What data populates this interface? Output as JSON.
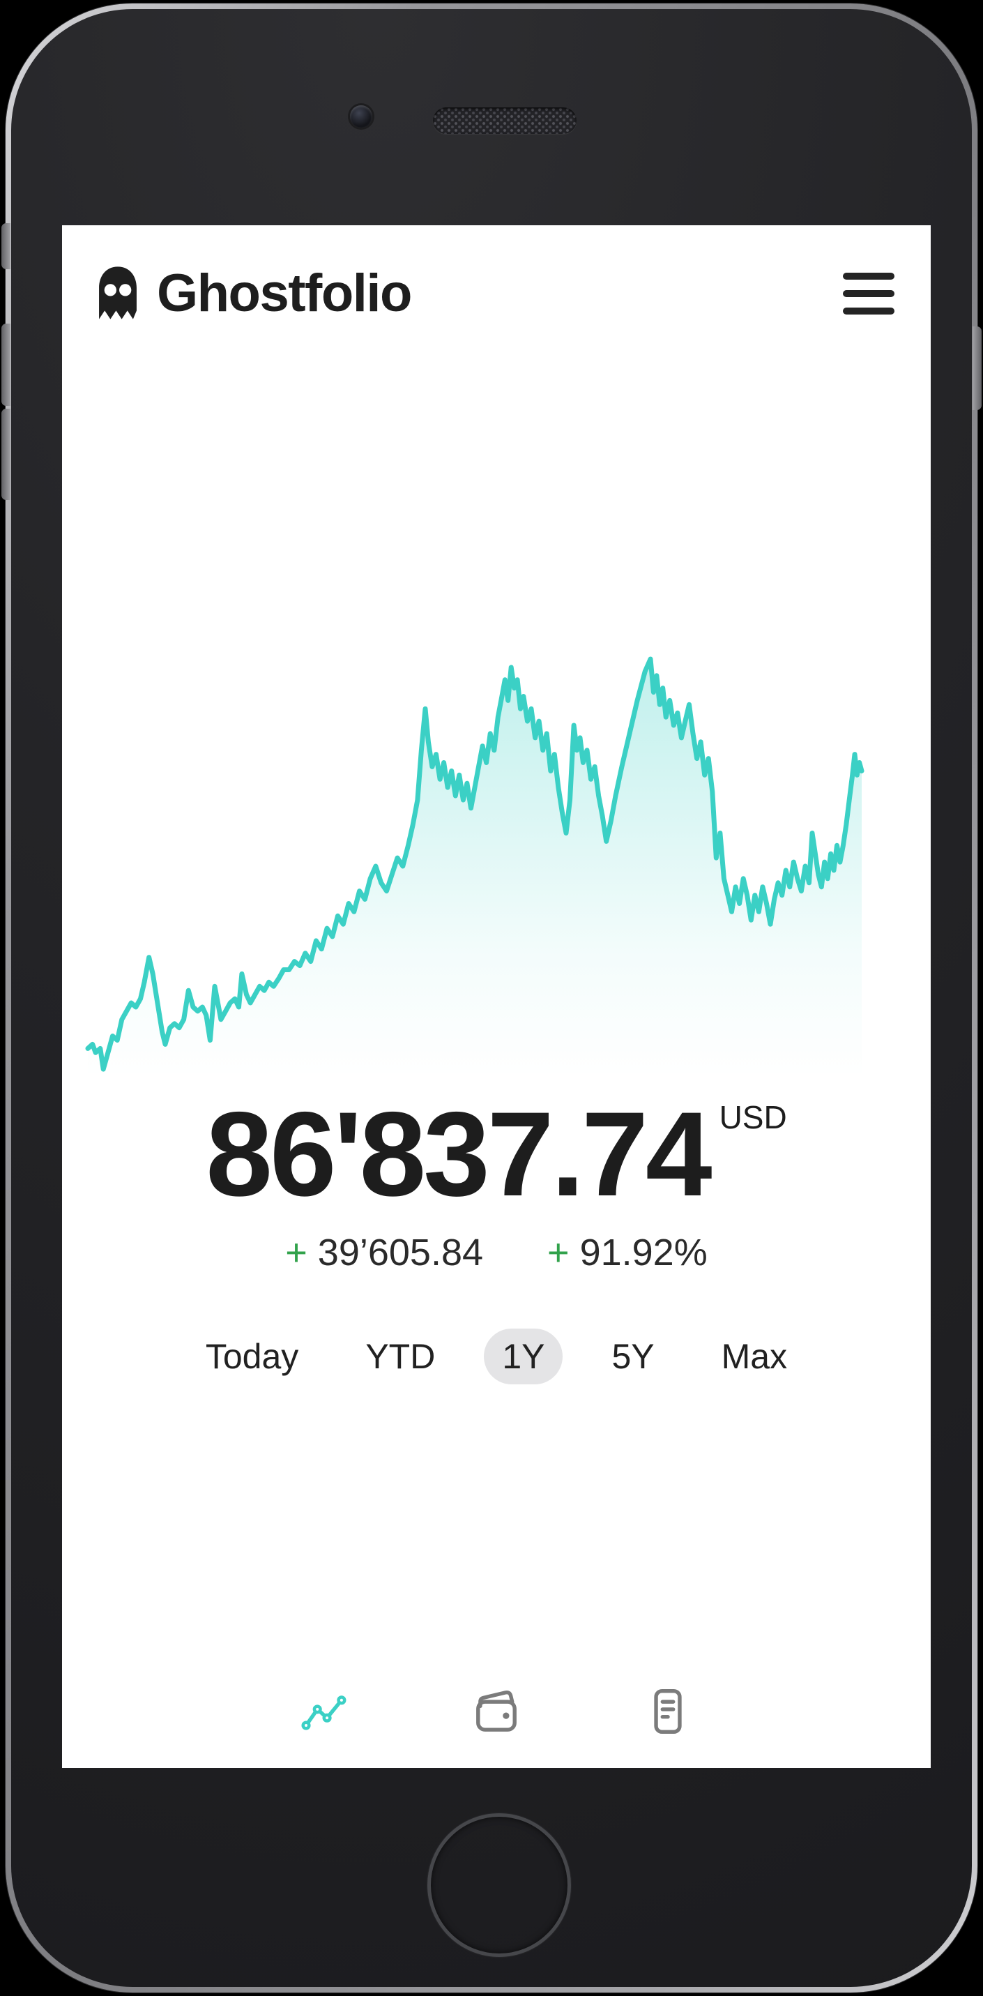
{
  "header": {
    "brand": "Ghostfolio"
  },
  "summary": {
    "value": "86'837.74",
    "currency": "USD",
    "sign": "+",
    "change_amount": "39’605.84",
    "change_percent": "91.92%"
  },
  "ranges": {
    "items": [
      {
        "label": "Today",
        "active": false
      },
      {
        "label": "YTD",
        "active": false
      },
      {
        "label": "1Y",
        "active": true
      },
      {
        "label": "5Y",
        "active": false
      },
      {
        "label": "Max",
        "active": false
      }
    ]
  },
  "nav": {
    "items": [
      {
        "icon": "performance-chart-icon",
        "active": true
      },
      {
        "icon": "wallet-icon",
        "active": false
      },
      {
        "icon": "reports-icon",
        "active": false
      }
    ]
  },
  "colors": {
    "accent": "#3bd0c5",
    "positive": "#31a24b",
    "pill": "#e4e4e6",
    "text": "#1e1e1e"
  },
  "chart_data": {
    "type": "area",
    "xlim": [
      0,
      1
    ],
    "ylim": [
      0,
      100
    ],
    "grid": false,
    "legend": false,
    "axes_visible": false,
    "line_color": "#3bd0c5",
    "fill": "vertical gradient of line color fading to transparent",
    "points": [
      [
        0,
        6
      ],
      [
        0.006,
        7
      ],
      [
        0.01,
        5
      ],
      [
        0.016,
        6
      ],
      [
        0.02,
        1
      ],
      [
        0.026,
        5
      ],
      [
        0.032,
        9
      ],
      [
        0.038,
        8
      ],
      [
        0.044,
        13
      ],
      [
        0.05,
        15
      ],
      [
        0.056,
        17
      ],
      [
        0.062,
        16
      ],
      [
        0.068,
        18
      ],
      [
        0.073,
        22
      ],
      [
        0.079,
        28
      ],
      [
        0.084,
        24
      ],
      [
        0.09,
        17
      ],
      [
        0.096,
        10
      ],
      [
        0.1,
        7
      ],
      [
        0.106,
        11
      ],
      [
        0.112,
        12
      ],
      [
        0.118,
        11
      ],
      [
        0.124,
        13
      ],
      [
        0.13,
        20
      ],
      [
        0.136,
        16
      ],
      [
        0.142,
        15
      ],
      [
        0.148,
        16
      ],
      [
        0.153,
        14
      ],
      [
        0.158,
        8
      ],
      [
        0.164,
        21
      ],
      [
        0.169,
        16
      ],
      [
        0.172,
        13
      ],
      [
        0.178,
        15
      ],
      [
        0.184,
        17
      ],
      [
        0.19,
        18
      ],
      [
        0.195,
        16
      ],
      [
        0.199,
        24
      ],
      [
        0.205,
        19
      ],
      [
        0.21,
        17
      ],
      [
        0.216,
        19
      ],
      [
        0.222,
        21
      ],
      [
        0.228,
        20
      ],
      [
        0.234,
        22
      ],
      [
        0.24,
        21
      ],
      [
        0.247,
        23
      ],
      [
        0.253,
        25
      ],
      [
        0.26,
        25
      ],
      [
        0.267,
        27
      ],
      [
        0.274,
        26
      ],
      [
        0.281,
        29
      ],
      [
        0.288,
        27
      ],
      [
        0.295,
        32
      ],
      [
        0.302,
        30
      ],
      [
        0.309,
        35
      ],
      [
        0.316,
        33
      ],
      [
        0.323,
        38
      ],
      [
        0.33,
        36
      ],
      [
        0.337,
        41
      ],
      [
        0.344,
        39
      ],
      [
        0.351,
        44
      ],
      [
        0.358,
        42
      ],
      [
        0.365,
        47
      ],
      [
        0.372,
        50
      ],
      [
        0.379,
        46
      ],
      [
        0.386,
        44
      ],
      [
        0.393,
        48
      ],
      [
        0.4,
        52
      ],
      [
        0.407,
        50
      ],
      [
        0.414,
        55
      ],
      [
        0.42,
        60
      ],
      [
        0.426,
        66
      ],
      [
        0.431,
        78
      ],
      [
        0.436,
        88
      ],
      [
        0.44,
        80
      ],
      [
        0.445,
        74
      ],
      [
        0.45,
        77
      ],
      [
        0.455,
        71
      ],
      [
        0.46,
        75
      ],
      [
        0.465,
        69
      ],
      [
        0.47,
        73
      ],
      [
        0.475,
        67
      ],
      [
        0.48,
        72
      ],
      [
        0.485,
        66
      ],
      [
        0.49,
        70
      ],
      [
        0.495,
        64
      ],
      [
        0.5,
        69
      ],
      [
        0.505,
        74
      ],
      [
        0.51,
        79
      ],
      [
        0.515,
        75
      ],
      [
        0.52,
        82
      ],
      [
        0.525,
        78
      ],
      [
        0.53,
        86
      ],
      [
        0.535,
        91
      ],
      [
        0.539,
        95
      ],
      [
        0.543,
        90
      ],
      [
        0.547,
        98
      ],
      [
        0.551,
        93
      ],
      [
        0.555,
        95
      ],
      [
        0.559,
        88
      ],
      [
        0.563,
        91
      ],
      [
        0.568,
        85
      ],
      [
        0.573,
        88
      ],
      [
        0.578,
        81
      ],
      [
        0.583,
        85
      ],
      [
        0.588,
        78
      ],
      [
        0.593,
        82
      ],
      [
        0.598,
        73
      ],
      [
        0.603,
        77
      ],
      [
        0.608,
        69
      ],
      [
        0.613,
        63
      ],
      [
        0.618,
        58
      ],
      [
        0.623,
        66
      ],
      [
        0.628,
        84
      ],
      [
        0.632,
        78
      ],
      [
        0.636,
        81
      ],
      [
        0.64,
        75
      ],
      [
        0.645,
        78
      ],
      [
        0.65,
        71
      ],
      [
        0.655,
        74
      ],
      [
        0.66,
        67
      ],
      [
        0.665,
        62
      ],
      [
        0.67,
        56
      ],
      [
        0.676,
        61
      ],
      [
        0.682,
        67
      ],
      [
        0.69,
        74
      ],
      [
        0.7,
        82
      ],
      [
        0.71,
        90
      ],
      [
        0.72,
        97
      ],
      [
        0.727,
        100
      ],
      [
        0.731,
        92
      ],
      [
        0.735,
        96
      ],
      [
        0.739,
        89
      ],
      [
        0.743,
        93
      ],
      [
        0.747,
        86
      ],
      [
        0.752,
        90
      ],
      [
        0.757,
        84
      ],
      [
        0.762,
        87
      ],
      [
        0.767,
        81
      ],
      [
        0.772,
        85
      ],
      [
        0.777,
        89
      ],
      [
        0.782,
        82
      ],
      [
        0.787,
        76
      ],
      [
        0.792,
        80
      ],
      [
        0.797,
        72
      ],
      [
        0.802,
        76
      ],
      [
        0.807,
        68
      ],
      [
        0.812,
        52
      ],
      [
        0.817,
        58
      ],
      [
        0.822,
        47
      ],
      [
        0.827,
        43
      ],
      [
        0.832,
        39
      ],
      [
        0.837,
        45
      ],
      [
        0.842,
        41
      ],
      [
        0.847,
        47
      ],
      [
        0.852,
        43
      ],
      [
        0.857,
        37
      ],
      [
        0.862,
        43
      ],
      [
        0.867,
        39
      ],
      [
        0.872,
        45
      ],
      [
        0.877,
        41
      ],
      [
        0.882,
        36
      ],
      [
        0.887,
        42
      ],
      [
        0.892,
        46
      ],
      [
        0.897,
        43
      ],
      [
        0.902,
        49
      ],
      [
        0.907,
        45
      ],
      [
        0.912,
        51
      ],
      [
        0.917,
        47
      ],
      [
        0.922,
        44
      ],
      [
        0.927,
        50
      ],
      [
        0.932,
        46
      ],
      [
        0.936,
        58
      ],
      [
        0.94,
        53
      ],
      [
        0.944,
        48
      ],
      [
        0.948,
        45
      ],
      [
        0.952,
        51
      ],
      [
        0.956,
        47
      ],
      [
        0.96,
        53
      ],
      [
        0.964,
        49
      ],
      [
        0.968,
        55
      ],
      [
        0.972,
        51
      ],
      [
        0.976,
        55
      ],
      [
        0.98,
        60
      ],
      [
        0.984,
        66
      ],
      [
        0.988,
        72
      ],
      [
        0.991,
        77
      ],
      [
        0.994,
        72
      ],
      [
        0.997,
        75
      ],
      [
        1,
        73
      ]
    ]
  }
}
